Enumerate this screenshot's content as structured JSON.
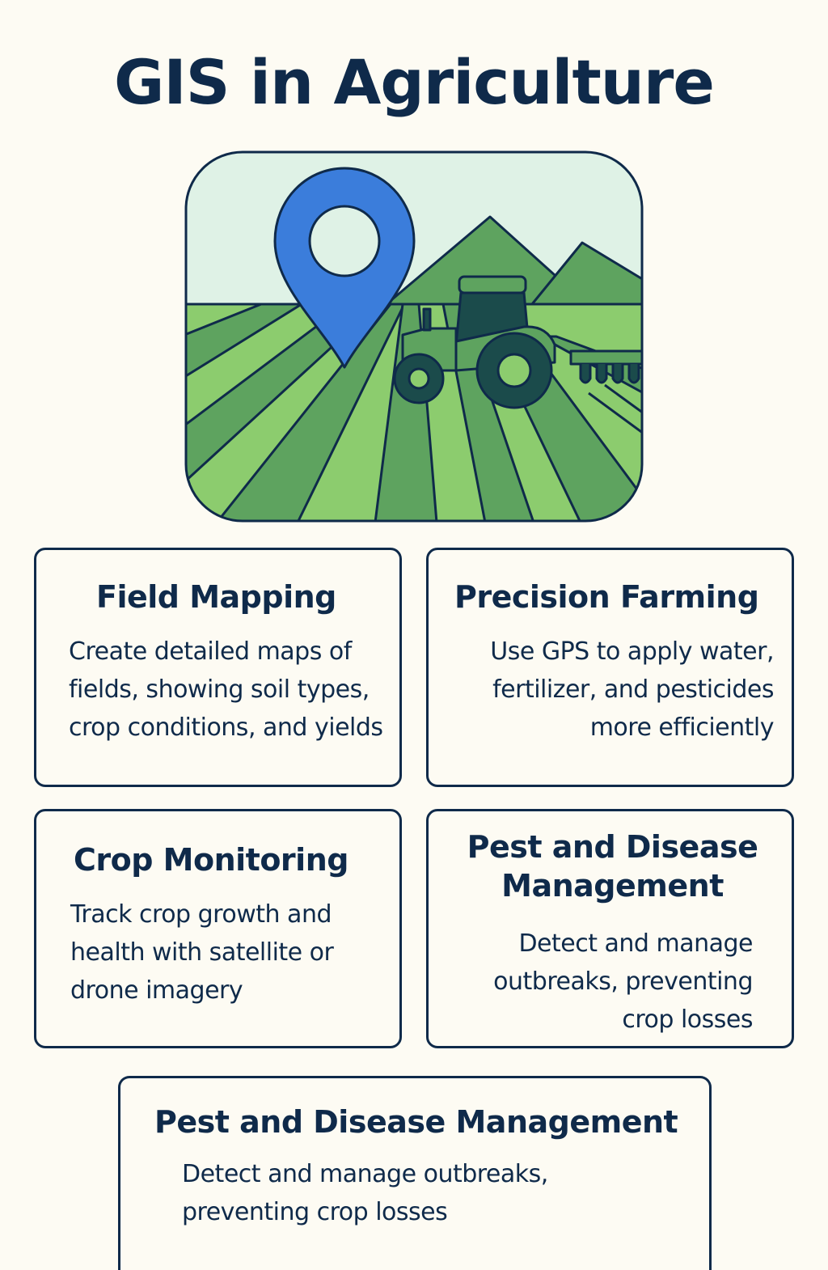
{
  "page": {
    "title": "GIS in Agriculture"
  },
  "colors": {
    "ink": "#0f2a4a",
    "background": "#fdfbf3",
    "sky": "#dff2e6",
    "field_light": "#8ccc6e",
    "field_dark": "#5ea35f",
    "mountain": "#5ea35f",
    "pin": "#3b7ddb",
    "tractor_dark": "#1b4b4b",
    "tractor_green": "#5ea35f"
  },
  "hero": {
    "icon": "map-pin-farm-tractor-illustration"
  },
  "cards": [
    {
      "title": "Field Mapping",
      "lines": [
        "Create detailed maps of",
        "fields, showing soil types,",
        "crop conditions, and yields"
      ]
    },
    {
      "title": "Precision Farming",
      "lines": [
        "Use GPS to apply water,",
        "fertilizer, and pesticides",
        "more efficiently"
      ]
    },
    {
      "title": "Crop Monitoring",
      "lines": [
        "Track crop growth and",
        "health with satellite or",
        "drone imagery"
      ]
    },
    {
      "title_lines": [
        "Pest and Disease",
        "Management"
      ],
      "lines": [
        "Detect and manage",
        "outbreaks, preventing",
        "crop losses"
      ]
    },
    {
      "title": "Pest and Disease Management",
      "lines": [
        "Detect and manage outbreaks,",
        "preventing crop losses"
      ]
    }
  ]
}
